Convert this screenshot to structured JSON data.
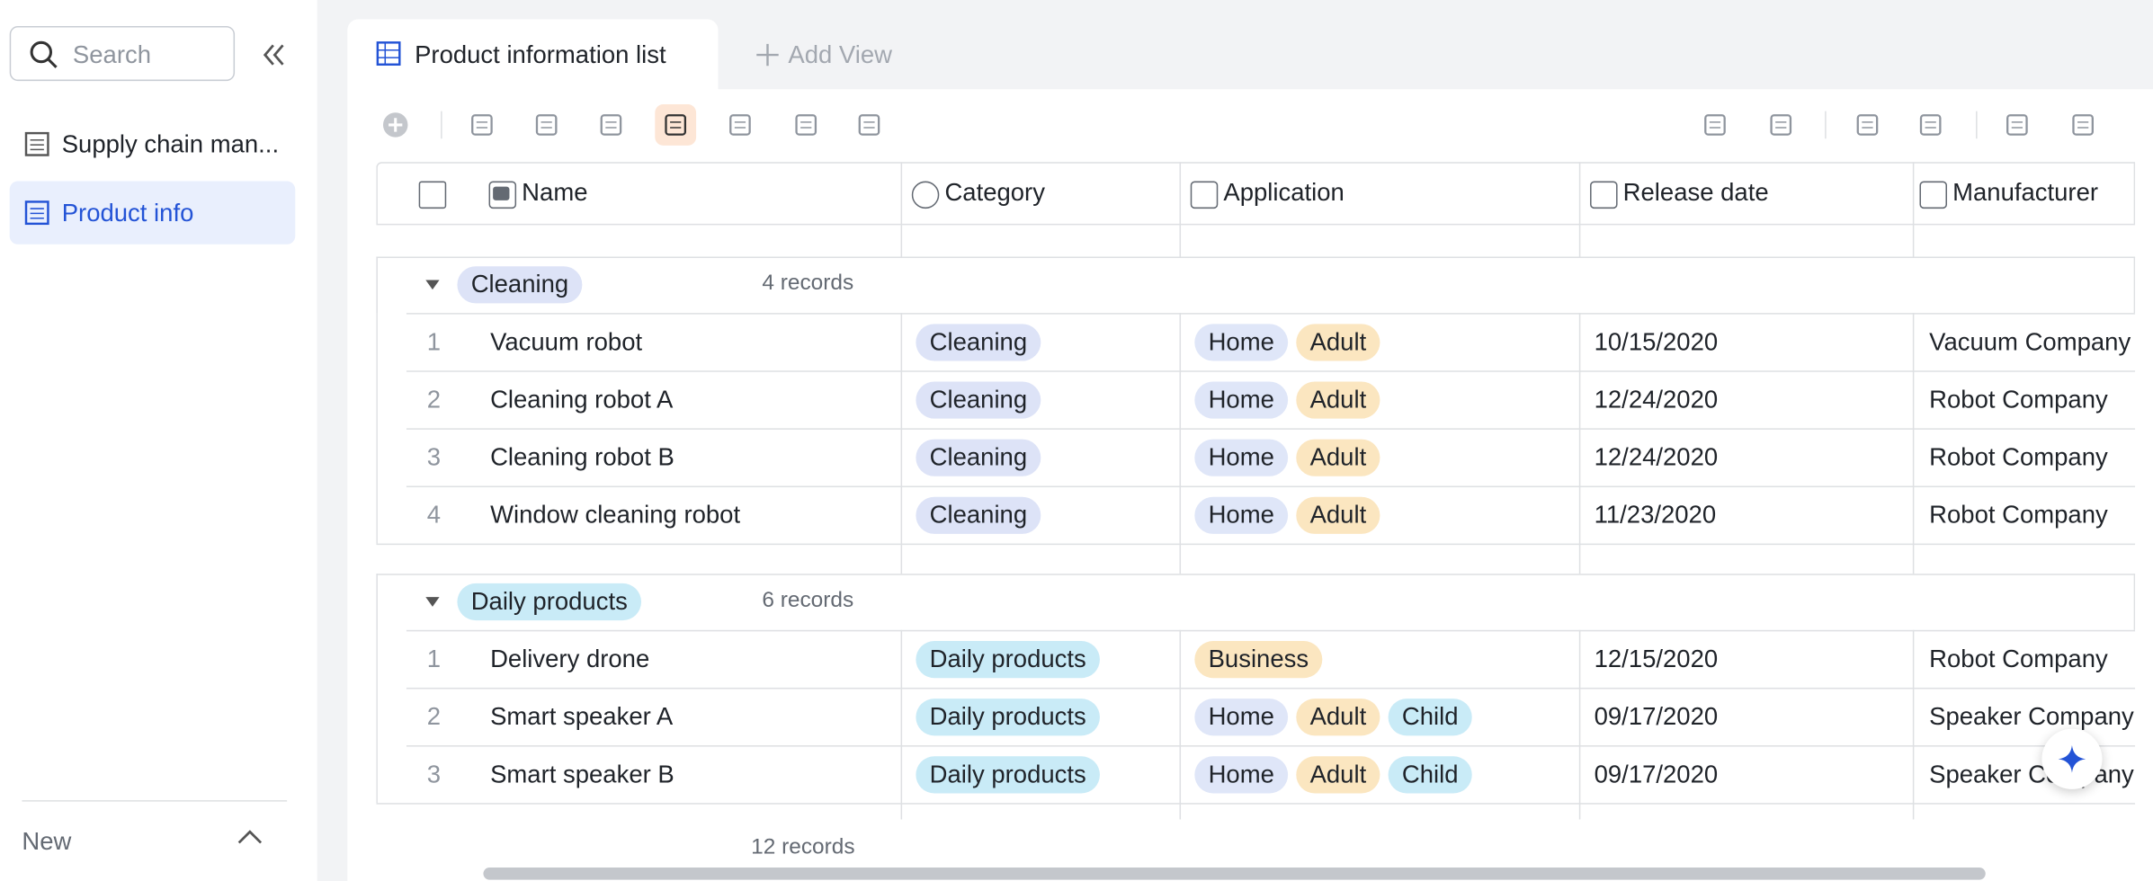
{
  "sidebar": {
    "search_placeholder": "Search",
    "items": [
      "Supply chain man...",
      "Product info"
    ],
    "footer": "New"
  },
  "tabs": {
    "active": "Product information list",
    "add_view": "Add View"
  },
  "columns": [
    "Name",
    "Category",
    "Application",
    "Release date",
    "Manufacturer"
  ],
  "groups": [
    {
      "name": {
        "label": "Cleaning",
        "color": "#dde3f7"
      },
      "count": "4 records",
      "rows": [
        {
          "index": 1,
          "name": "Vacuum robot",
          "category": {
            "label": "Cleaning",
            "color": "#dde3f7"
          },
          "application": [
            {
              "label": "Home",
              "color": "#dfe6f8"
            },
            {
              "label": "Adult",
              "color": "#fbe6c0"
            }
          ],
          "release_date": "10/15/2020",
          "manufacturer": "Vacuum Company"
        },
        {
          "index": 2,
          "name": "Cleaning robot A",
          "category": {
            "label": "Cleaning",
            "color": "#dde3f7"
          },
          "application": [
            {
              "label": "Home",
              "color": "#dfe6f8"
            },
            {
              "label": "Adult",
              "color": "#fbe6c0"
            }
          ],
          "release_date": "12/24/2020",
          "manufacturer": "Robot Company"
        },
        {
          "index": 3,
          "name": "Cleaning robot B",
          "category": {
            "label": "Cleaning",
            "color": "#dde3f7"
          },
          "application": [
            {
              "label": "Home",
              "color": "#dfe6f8"
            },
            {
              "label": "Adult",
              "color": "#fbe6c0"
            }
          ],
          "release_date": "12/24/2020",
          "manufacturer": "Robot Company"
        },
        {
          "index": 4,
          "name": "Window cleaning robot",
          "category": {
            "label": "Cleaning",
            "color": "#dde3f7"
          },
          "application": [
            {
              "label": "Home",
              "color": "#dfe6f8"
            },
            {
              "label": "Adult",
              "color": "#fbe6c0"
            }
          ],
          "release_date": "11/23/2020",
          "manufacturer": "Robot Company"
        }
      ]
    },
    {
      "name": {
        "label": "Daily products",
        "color": "#c9ebf7"
      },
      "count": "6 records",
      "rows": [
        {
          "index": 1,
          "name": "Delivery drone",
          "category": {
            "label": "Daily products",
            "color": "#c9ebf7"
          },
          "application": [
            {
              "label": "Business",
              "color": "#fbe6c0"
            }
          ],
          "release_date": "12/15/2020",
          "manufacturer": "Robot Company"
        },
        {
          "index": 2,
          "name": "Smart speaker A",
          "category": {
            "label": "Daily products",
            "color": "#c9ebf7"
          },
          "application": [
            {
              "label": "Home",
              "color": "#dfe6f8"
            },
            {
              "label": "Adult",
              "color": "#fbe6c0"
            },
            {
              "label": "Child",
              "color": "#c9ebf7"
            }
          ],
          "release_date": "09/17/2020",
          "manufacturer": "Speaker Company"
        },
        {
          "index": 3,
          "name": "Smart speaker B",
          "category": {
            "label": "Daily products",
            "color": "#c9ebf7"
          },
          "application": [
            {
              "label": "Home",
              "color": "#dfe6f8"
            },
            {
              "label": "Adult",
              "color": "#fbe6c0"
            },
            {
              "label": "Child",
              "color": "#c9ebf7"
            }
          ],
          "release_date": "09/17/2020",
          "manufacturer": "Speaker Company"
        }
      ]
    }
  ],
  "footer": {
    "total": "12 records"
  }
}
